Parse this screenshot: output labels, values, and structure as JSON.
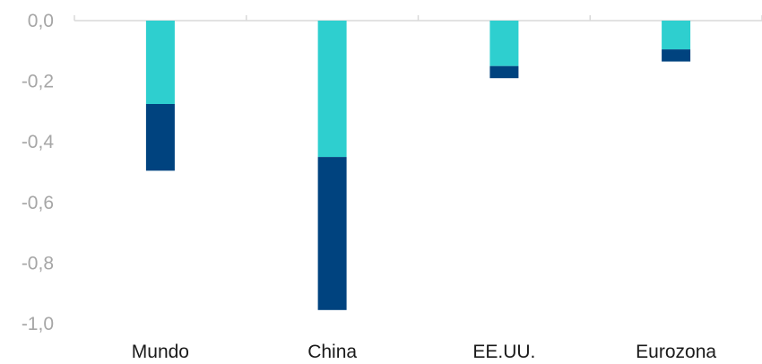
{
  "chart_data": {
    "type": "bar",
    "stacked": true,
    "title": "",
    "xlabel": "",
    "ylabel": "",
    "categories": [
      "Mundo",
      "China",
      "EE.UU.",
      "Eurozona"
    ],
    "series": [
      {
        "values": [
          -0.275,
          -0.45,
          -0.15,
          -0.095
        ],
        "color": "#2ecfcf"
      },
      {
        "values": [
          -0.22,
          -0.505,
          -0.04,
          -0.04
        ],
        "color": "#00437f"
      }
    ],
    "ylim": [
      -1.0,
      0.0
    ],
    "yticks": [
      {
        "value": 0.0,
        "label": "0,0"
      },
      {
        "value": -0.2,
        "label": "-0,2"
      },
      {
        "value": -0.4,
        "label": "-0,4"
      },
      {
        "value": -0.6,
        "label": "-0,6"
      },
      {
        "value": -0.8,
        "label": "-0,8"
      },
      {
        "value": -1.0,
        "label": "-1,0"
      }
    ],
    "grid": false,
    "legend": "none"
  }
}
